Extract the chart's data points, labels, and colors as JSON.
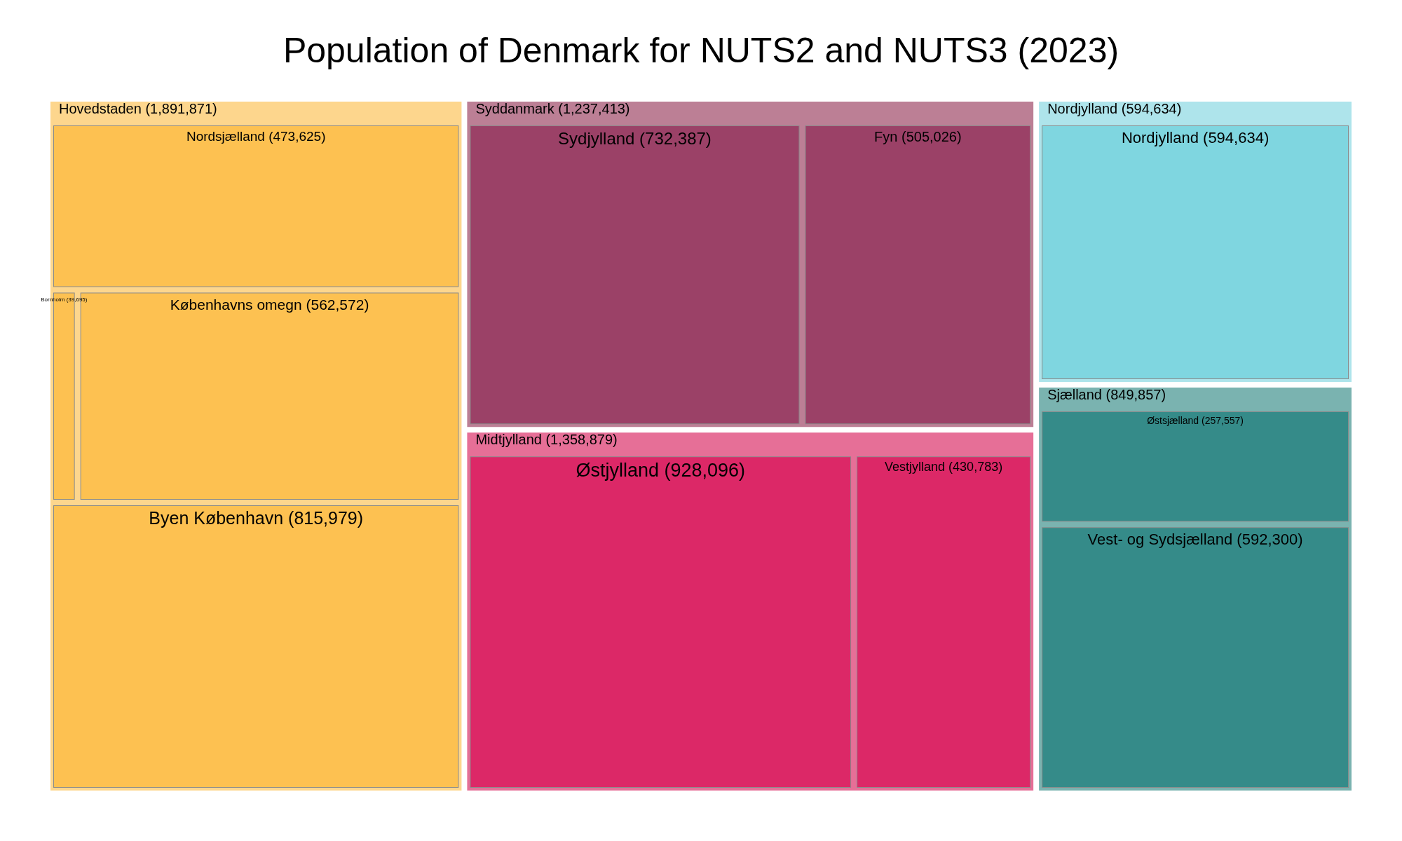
{
  "chart_data": {
    "type": "other",
    "title": "Population of Denmark for NUTS2 and NUTS3 (2023)",
    "categories": [
      "Hovedstaden",
      "Nordsjælland",
      "Bornholm",
      "Københavns omegn",
      "Byen København",
      "Syddanmark",
      "Sydjylland",
      "Fyn",
      "Midtjylland",
      "Østjylland",
      "Vestjylland",
      "Nordjylland",
      "Nordjylland",
      "Sjælland",
      "Østsjælland",
      "Vest- og Sydsjælland"
    ],
    "values": [
      1891871,
      473625,
      39695,
      562572,
      815979,
      1237413,
      732387,
      505026,
      1358879,
      928096,
      430783,
      594634,
      594634,
      849857,
      257557,
      592300
    ],
    "colors": [
      "#fdd68d",
      "#fdc151",
      "#fdc151",
      "#fdc151",
      "#fdc151",
      "#bc7f95",
      "#9b4167",
      "#9b4167",
      "#e66f97",
      "#dc2867",
      "#dc2867",
      "#aee4eb",
      "#7fd6e0",
      "#7ab3b0",
      "#358b89",
      "#358b89"
    ],
    "value_labels": [
      "(1,891,871)",
      "(473,625)",
      "(39,695)",
      "(562,572)",
      "(815,979)",
      "(1,237,413)",
      "(732,387)",
      "(505,026)",
      "(1,358,879)",
      "(928,096)",
      "(430,783)",
      "(594,634)",
      "(594,634)",
      "(849,857)",
      "(257,557)",
      "(592,300)"
    ]
  }
}
